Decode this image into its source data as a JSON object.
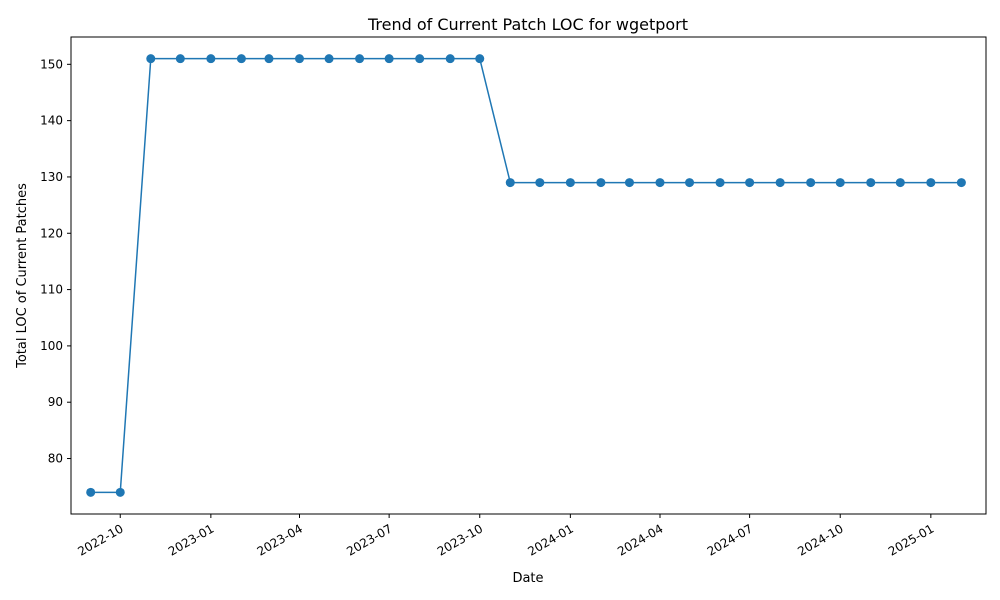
{
  "chart_data": {
    "type": "line",
    "title": "Trend of Current Patch LOC for wgetport",
    "xlabel": "Date",
    "ylabel": "Total LOC of Current Patches",
    "x_ticks": [
      "2022-10",
      "2023-01",
      "2023-04",
      "2023-07",
      "2023-10",
      "2024-01",
      "2024-04",
      "2024-07",
      "2024-10",
      "2025-01"
    ],
    "y_ticks": [
      80,
      90,
      100,
      110,
      120,
      130,
      140,
      150
    ],
    "xlim": [
      "2022-08-12",
      "2025-02-26"
    ],
    "ylim": [
      70.15,
      154.85
    ],
    "grid": false,
    "series": [
      {
        "color": "#1f77b4",
        "marker": "circle",
        "points": [
          {
            "x": "2022-09-01",
            "y": 74
          },
          {
            "x": "2022-10-01",
            "y": 74
          },
          {
            "x": "2022-11-01",
            "y": 151
          },
          {
            "x": "2022-12-01",
            "y": 151
          },
          {
            "x": "2023-01-01",
            "y": 151
          },
          {
            "x": "2023-02-01",
            "y": 151
          },
          {
            "x": "2023-03-01",
            "y": 151
          },
          {
            "x": "2023-04-01",
            "y": 151
          },
          {
            "x": "2023-05-01",
            "y": 151
          },
          {
            "x": "2023-06-01",
            "y": 151
          },
          {
            "x": "2023-07-01",
            "y": 151
          },
          {
            "x": "2023-08-01",
            "y": 151
          },
          {
            "x": "2023-09-01",
            "y": 151
          },
          {
            "x": "2023-10-01",
            "y": 151
          },
          {
            "x": "2023-11-01",
            "y": 129
          },
          {
            "x": "2023-12-01",
            "y": 129
          },
          {
            "x": "2024-01-01",
            "y": 129
          },
          {
            "x": "2024-02-01",
            "y": 129
          },
          {
            "x": "2024-03-01",
            "y": 129
          },
          {
            "x": "2024-04-01",
            "y": 129
          },
          {
            "x": "2024-05-01",
            "y": 129
          },
          {
            "x": "2024-06-01",
            "y": 129
          },
          {
            "x": "2024-07-01",
            "y": 129
          },
          {
            "x": "2024-08-01",
            "y": 129
          },
          {
            "x": "2024-09-01",
            "y": 129
          },
          {
            "x": "2024-10-01",
            "y": 129
          },
          {
            "x": "2024-11-01",
            "y": 129
          },
          {
            "x": "2024-12-01",
            "y": 129
          },
          {
            "x": "2025-01-01",
            "y": 129
          },
          {
            "x": "2025-02-01",
            "y": 129
          }
        ]
      }
    ]
  }
}
